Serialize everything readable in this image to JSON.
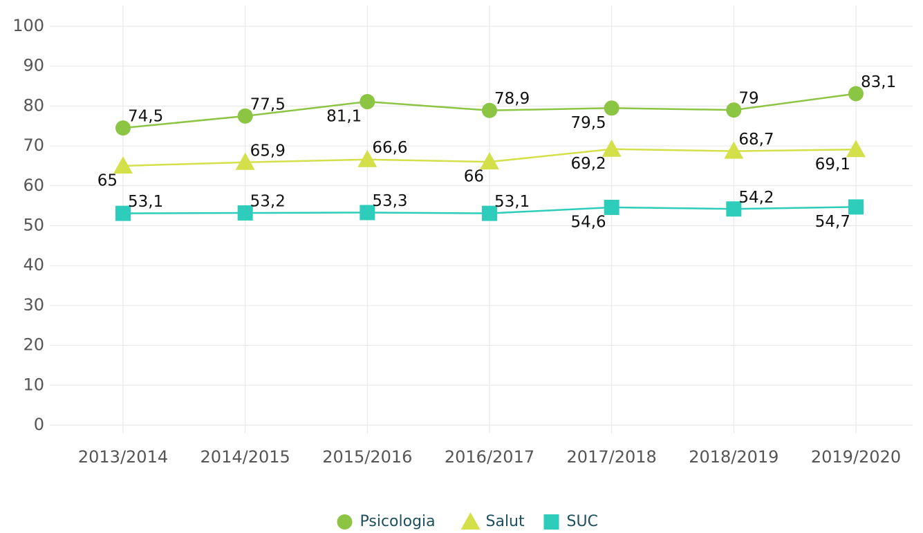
{
  "chart_data": {
    "type": "line",
    "categories": [
      "2013/2014",
      "2014/2015",
      "2015/2016",
      "2016/2017",
      "2017/2018",
      "2018/2019",
      "2019/2020"
    ],
    "series": [
      {
        "name": "Psicologia",
        "color": "#8cc443",
        "marker": "circle",
        "values": [
          74.5,
          77.5,
          81.1,
          78.9,
          79.5,
          79,
          83.1
        ],
        "value_labels": [
          "74,5",
          "77,5",
          "81,1",
          "78,9",
          "79,5",
          "79",
          "83,1"
        ]
      },
      {
        "name": "Salut",
        "color": "#d3e04a",
        "marker": "triangle",
        "values": [
          65,
          65.9,
          66.6,
          66,
          69.2,
          68.7,
          69.1
        ],
        "value_labels": [
          "65",
          "65,9",
          "66,6",
          "66",
          "69,2",
          "68,7",
          "69,1"
        ]
      },
      {
        "name": "SUC",
        "color": "#2ecdbb",
        "marker": "square",
        "values": [
          53.1,
          53.2,
          53.3,
          53.1,
          54.6,
          54.2,
          54.7
        ],
        "value_labels": [
          "53,1",
          "53,2",
          "53,3",
          "53,1",
          "54,6",
          "54,2",
          "54,7"
        ]
      }
    ],
    "ylim": [
      0,
      100
    ],
    "yticks": [
      0,
      10,
      20,
      30,
      40,
      50,
      60,
      70,
      80,
      90,
      100
    ],
    "grid": true,
    "legend": "bottom"
  }
}
